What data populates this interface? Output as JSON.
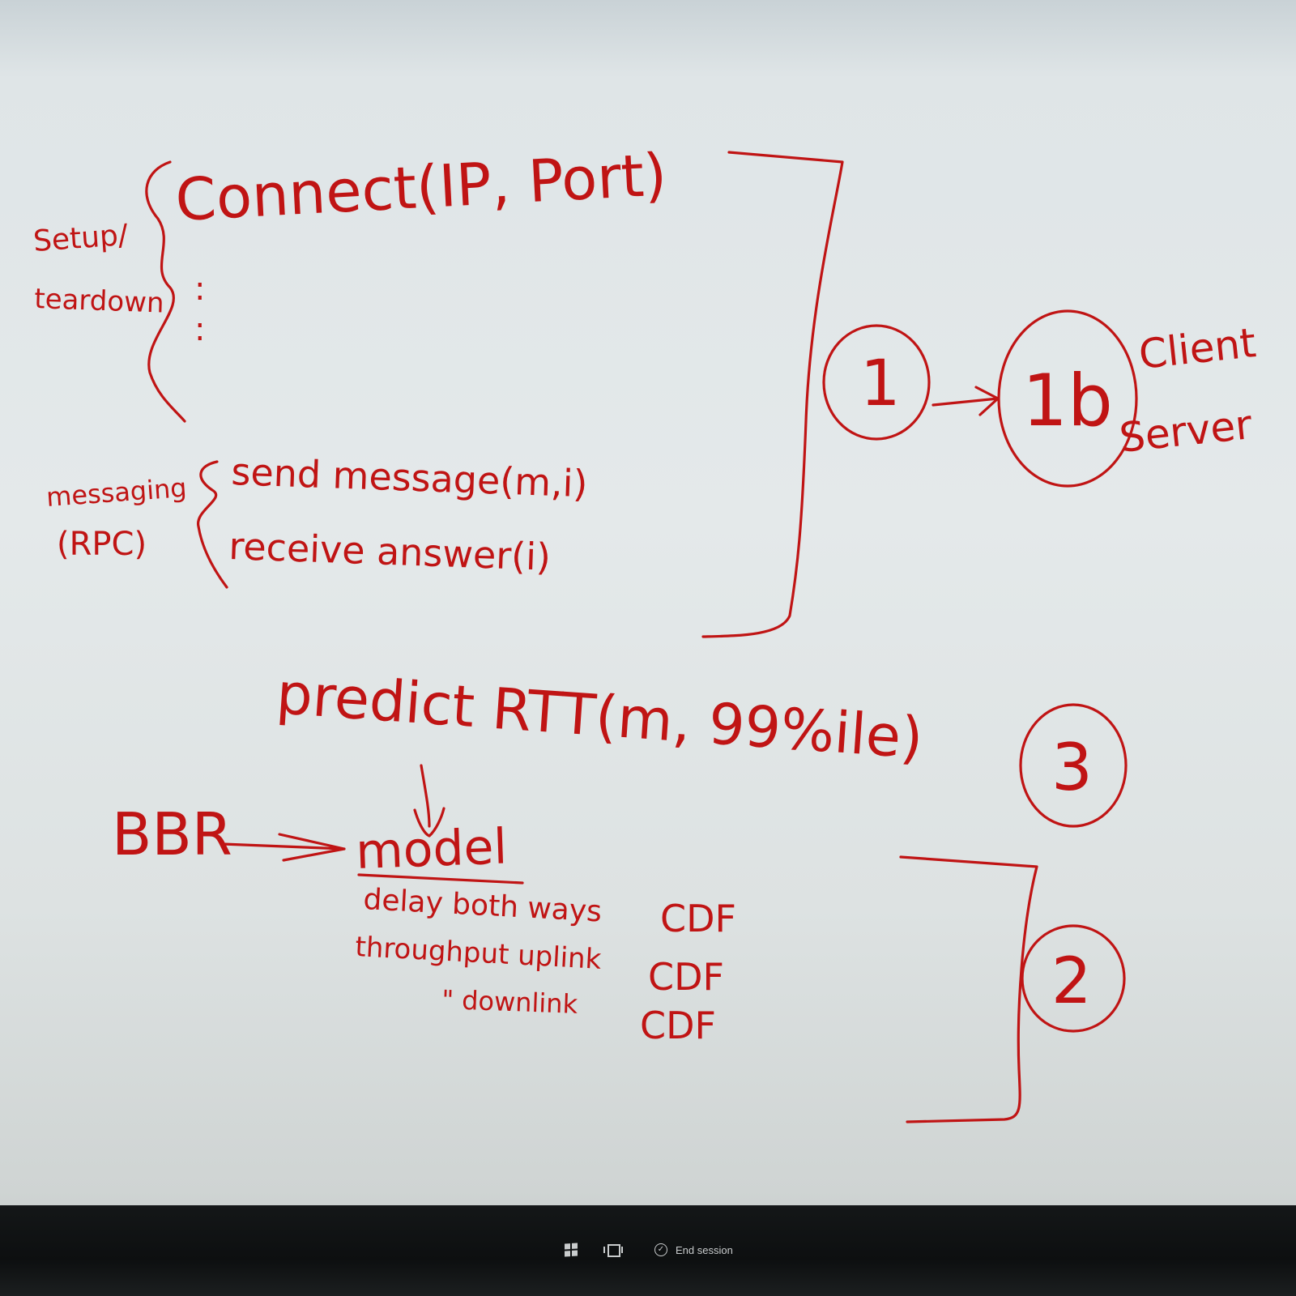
{
  "whiteboard": {
    "ink_color": "#c01414",
    "board_color": "#e3e8e9",
    "setup_label_line1": "Setup/",
    "setup_label_line2": "teardown",
    "connect_call": "Connect(IP, Port)",
    "setup_dots": ":",
    "messaging_label_line1": "messaging",
    "messaging_label_line2": "(RPC)",
    "send_call": "send message(m,i)",
    "receive_call": "receive answer(i)",
    "circle_1": "1",
    "circle_1b": "1b",
    "client_label": "Client",
    "server_label": "Server",
    "predict_call": "predict RTT(m, 99%ile)",
    "circle_3": "3",
    "bbr_label": "BBR",
    "model_label": "model",
    "model_items": [
      {
        "name": "delay both ways",
        "dist": "CDF"
      },
      {
        "name": "throughput uplink",
        "dist": "CDF"
      },
      {
        "name": "\"   downlink",
        "dist": "CDF"
      }
    ],
    "circle_2": "2"
  },
  "taskbar": {
    "background": "#0f1112",
    "start_icon": "windows-logo-icon",
    "task_view_icon": "task-view-icon",
    "end_session_icon": "check-circle-icon",
    "end_session_label": "End session"
  }
}
